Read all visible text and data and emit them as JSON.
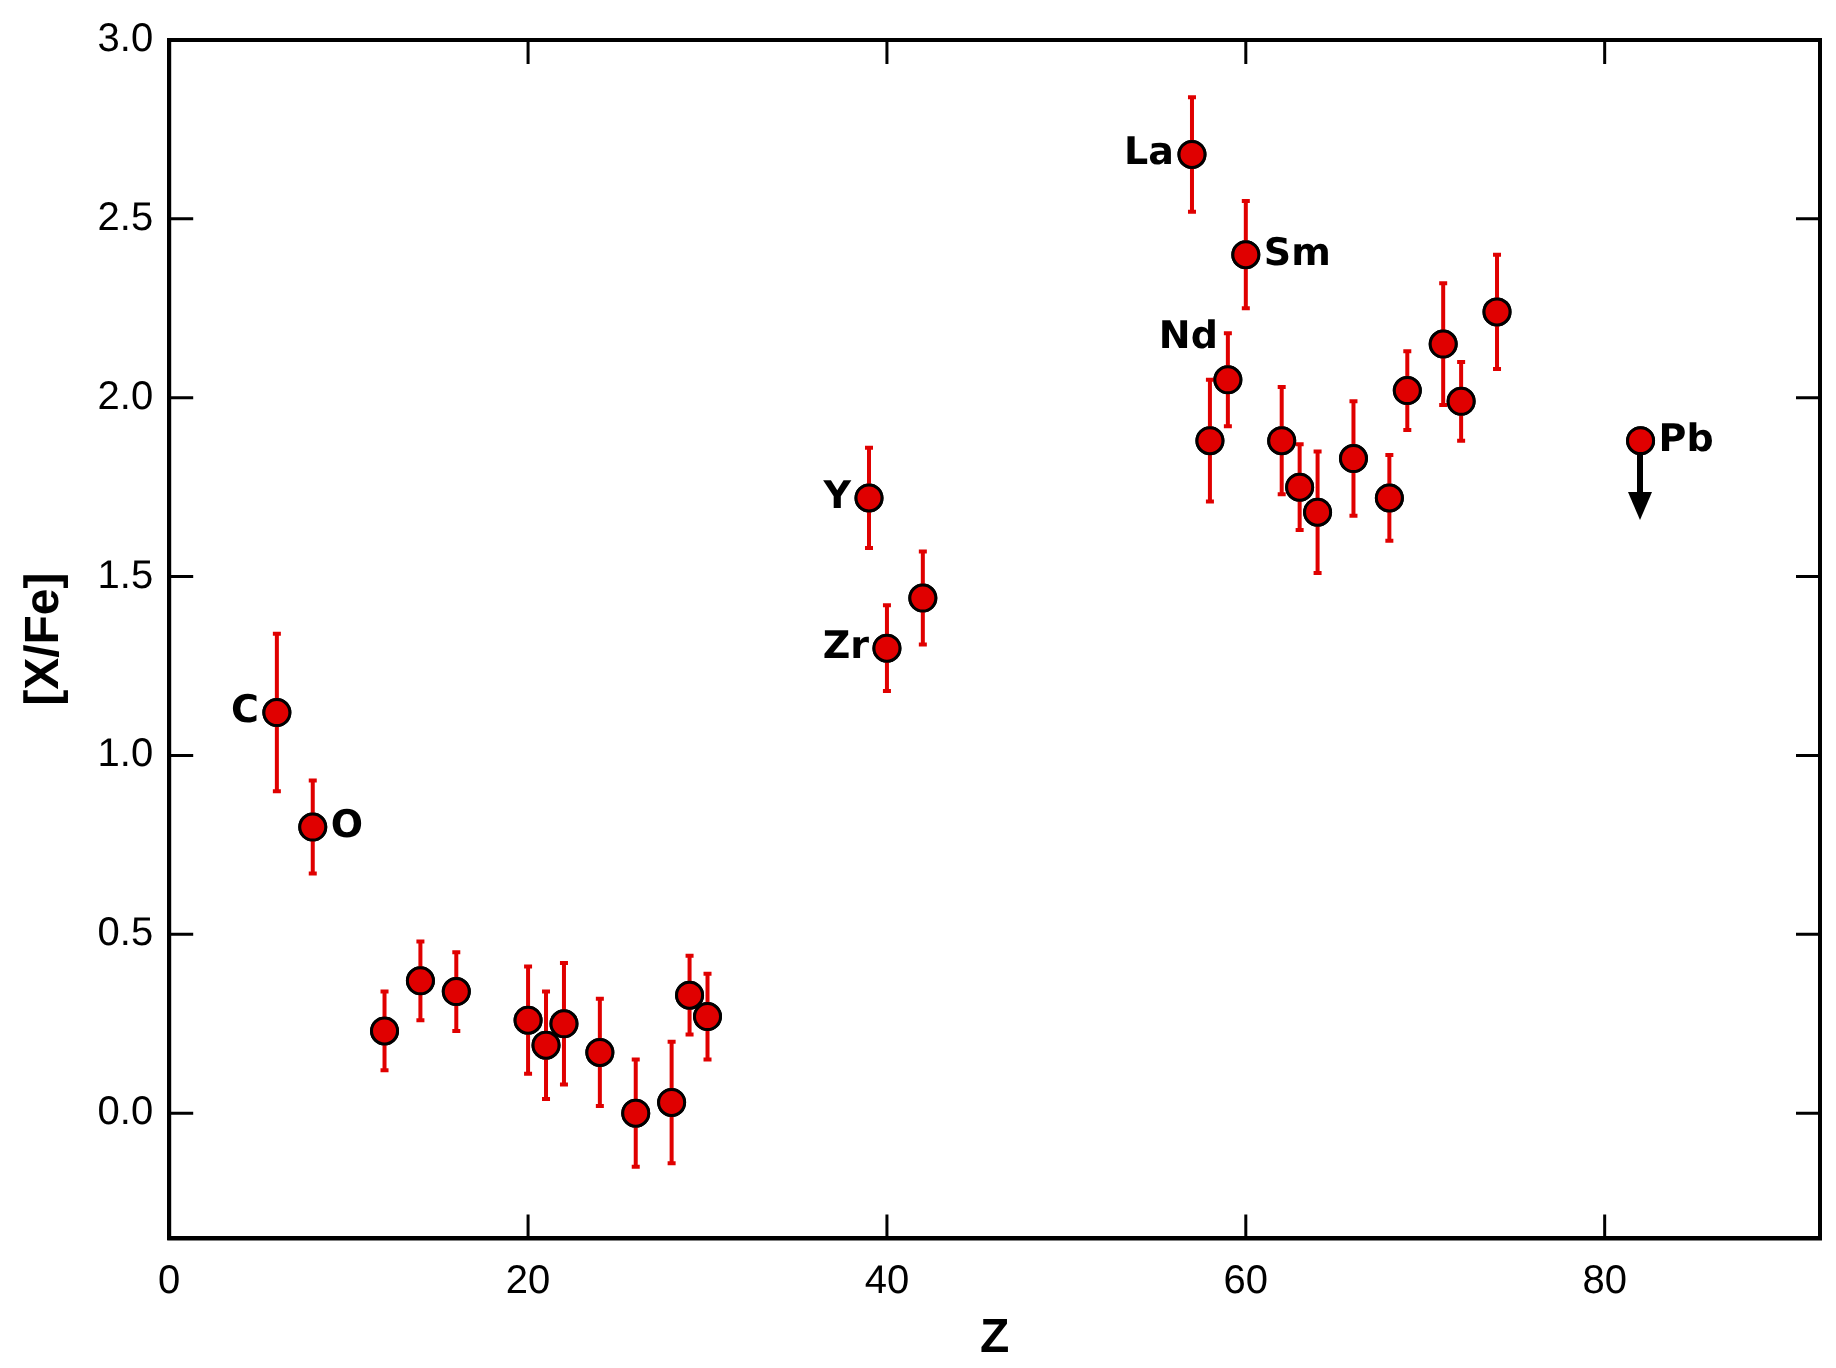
{
  "chart_data": {
    "type": "scatter",
    "xlabel": "Z",
    "ylabel": "[X/Fe]",
    "xlim": [
      0,
      92
    ],
    "ylim": [
      -0.35,
      3.0
    ],
    "xticks": [
      0,
      20,
      40,
      60,
      80
    ],
    "yticks": [
      {
        "value": 0,
        "label": "0.0"
      },
      {
        "value": 0.5,
        "label": "0.5"
      },
      {
        "value": 1,
        "label": "1.0"
      },
      {
        "value": 1.5,
        "label": "1.5"
      },
      {
        "value": 2,
        "label": "2.0"
      },
      {
        "value": 2.5,
        "label": "2.5"
      },
      {
        "value": 3,
        "label": "3.0"
      }
    ],
    "grid": false,
    "legend": false,
    "marker": "circle",
    "series": [
      {
        "color": "#e00000",
        "x": [
          6,
          8,
          12,
          14,
          16,
          20,
          21,
          22,
          24,
          26,
          28,
          29,
          30,
          39,
          40,
          42,
          57,
          58,
          59,
          60,
          62,
          63,
          64,
          66,
          68,
          69,
          71,
          72,
          74,
          82
        ],
        "values": [
          1.12,
          0.8,
          0.23,
          0.37,
          0.34,
          0.26,
          0.19,
          0.25,
          0.17,
          0.0,
          0.03,
          0.33,
          0.27,
          1.72,
          1.3,
          1.44,
          2.68,
          1.88,
          2.05,
          2.4,
          1.88,
          1.75,
          1.68,
          1.83,
          1.72,
          2.02,
          2.15,
          1.99,
          2.24,
          1.88
        ],
        "errors": [
          0.22,
          0.13,
          0.11,
          0.11,
          0.11,
          0.15,
          0.15,
          0.17,
          0.15,
          0.15,
          0.17,
          0.11,
          0.12,
          0.14,
          0.12,
          0.13,
          0.16,
          0.17,
          0.13,
          0.15,
          0.15,
          0.12,
          0.17,
          0.16,
          0.12,
          0.11,
          0.17,
          0.11,
          0.16,
          null
        ]
      }
    ],
    "annotations": [
      {
        "text": "C",
        "x": 6,
        "y": 1.12
      },
      {
        "text": "O",
        "x": 8,
        "y": 0.8
      },
      {
        "text": "Y",
        "x": 39,
        "y": 1.72
      },
      {
        "text": "Zr",
        "x": 40,
        "y": 1.3
      },
      {
        "text": "La",
        "x": 57,
        "y": 2.68
      },
      {
        "text": "Sm",
        "x": 60,
        "y": 2.4
      },
      {
        "text": "Nd",
        "x": 59,
        "y": 2.05
      },
      {
        "text": "Pb",
        "x": 82,
        "y": 1.88
      }
    ]
  }
}
